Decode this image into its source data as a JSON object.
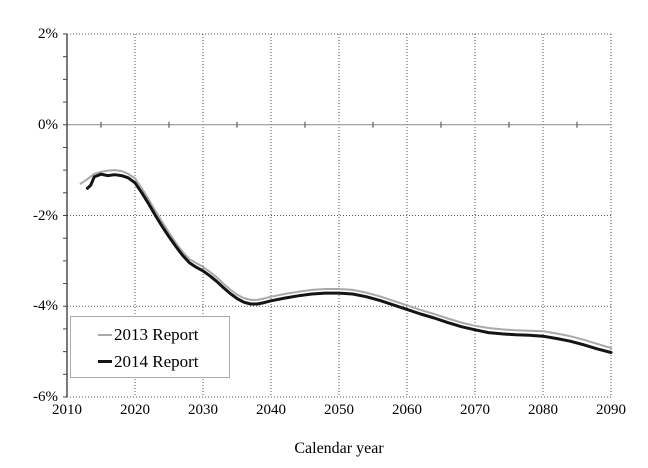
{
  "chart_data": {
    "type": "line",
    "title": "",
    "xlabel": "Calendar year",
    "ylabel": "",
    "xlim": [
      2010,
      2090
    ],
    "ylim": [
      -6,
      2
    ],
    "x_tick_values": [
      2010,
      2020,
      2030,
      2040,
      2050,
      2060,
      2070,
      2080,
      2090
    ],
    "x_tick_labels": [
      "2010",
      "2020",
      "2030",
      "2040",
      "2050",
      "2060",
      "2070",
      "2080",
      "2090"
    ],
    "x_minor_step": 5,
    "y_tick_values": [
      2,
      0,
      -2,
      -4,
      -6
    ],
    "y_tick_labels": [
      "2%",
      "0%",
      "-2%",
      "-4%",
      "-6%"
    ],
    "y_minor_step": 0.5,
    "grid": "dotted",
    "legend_position": "lower-left",
    "series": [
      {
        "name": "2013 Report",
        "color": "#a9a9a9",
        "width": 2,
        "points": [
          [
            2012,
            -1.3
          ],
          [
            2013,
            -1.2
          ],
          [
            2014,
            -1.08
          ],
          [
            2015,
            -1.04
          ],
          [
            2016,
            -1.01
          ],
          [
            2017,
            -1.0
          ],
          [
            2018,
            -1.02
          ],
          [
            2019,
            -1.08
          ],
          [
            2020,
            -1.18
          ],
          [
            2021,
            -1.4
          ],
          [
            2022,
            -1.64
          ],
          [
            2023,
            -1.9
          ],
          [
            2024,
            -2.14
          ],
          [
            2025,
            -2.38
          ],
          [
            2026,
            -2.6
          ],
          [
            2027,
            -2.8
          ],
          [
            2028,
            -2.96
          ],
          [
            2029,
            -3.05
          ],
          [
            2030,
            -3.13
          ],
          [
            2031,
            -3.24
          ],
          [
            2032,
            -3.36
          ],
          [
            2033,
            -3.5
          ],
          [
            2034,
            -3.63
          ],
          [
            2035,
            -3.74
          ],
          [
            2036,
            -3.82
          ],
          [
            2037,
            -3.86
          ],
          [
            2038,
            -3.86
          ],
          [
            2039,
            -3.83
          ],
          [
            2040,
            -3.79
          ],
          [
            2042,
            -3.73
          ],
          [
            2044,
            -3.68
          ],
          [
            2046,
            -3.64
          ],
          [
            2048,
            -3.62
          ],
          [
            2050,
            -3.62
          ],
          [
            2052,
            -3.64
          ],
          [
            2054,
            -3.7
          ],
          [
            2056,
            -3.78
          ],
          [
            2058,
            -3.88
          ],
          [
            2060,
            -3.98
          ],
          [
            2062,
            -4.08
          ],
          [
            2064,
            -4.17
          ],
          [
            2066,
            -4.27
          ],
          [
            2068,
            -4.36
          ],
          [
            2070,
            -4.43
          ],
          [
            2072,
            -4.48
          ],
          [
            2074,
            -4.51
          ],
          [
            2076,
            -4.53
          ],
          [
            2078,
            -4.54
          ],
          [
            2080,
            -4.55
          ],
          [
            2082,
            -4.6
          ],
          [
            2084,
            -4.66
          ],
          [
            2086,
            -4.74
          ],
          [
            2088,
            -4.83
          ],
          [
            2090,
            -4.92
          ]
        ]
      },
      {
        "name": "2014 Report",
        "color": "#141414",
        "width": 3,
        "points": [
          [
            2013,
            -1.4
          ],
          [
            2013.5,
            -1.33
          ],
          [
            2014,
            -1.15
          ],
          [
            2015,
            -1.09
          ],
          [
            2016,
            -1.12
          ],
          [
            2017,
            -1.1
          ],
          [
            2018,
            -1.12
          ],
          [
            2019,
            -1.17
          ],
          [
            2020,
            -1.28
          ],
          [
            2021,
            -1.5
          ],
          [
            2022,
            -1.74
          ],
          [
            2023,
            -2.0
          ],
          [
            2024,
            -2.24
          ],
          [
            2025,
            -2.47
          ],
          [
            2026,
            -2.68
          ],
          [
            2027,
            -2.88
          ],
          [
            2028,
            -3.04
          ],
          [
            2029,
            -3.14
          ],
          [
            2030,
            -3.22
          ],
          [
            2031,
            -3.33
          ],
          [
            2032,
            -3.45
          ],
          [
            2033,
            -3.59
          ],
          [
            2034,
            -3.72
          ],
          [
            2035,
            -3.83
          ],
          [
            2036,
            -3.91
          ],
          [
            2037,
            -3.95
          ],
          [
            2038,
            -3.95
          ],
          [
            2039,
            -3.92
          ],
          [
            2040,
            -3.88
          ],
          [
            2042,
            -3.82
          ],
          [
            2044,
            -3.77
          ],
          [
            2046,
            -3.73
          ],
          [
            2048,
            -3.71
          ],
          [
            2050,
            -3.71
          ],
          [
            2052,
            -3.73
          ],
          [
            2054,
            -3.79
          ],
          [
            2056,
            -3.87
          ],
          [
            2058,
            -3.97
          ],
          [
            2060,
            -4.07
          ],
          [
            2062,
            -4.17
          ],
          [
            2064,
            -4.26
          ],
          [
            2066,
            -4.36
          ],
          [
            2068,
            -4.45
          ],
          [
            2070,
            -4.52
          ],
          [
            2072,
            -4.58
          ],
          [
            2074,
            -4.61
          ],
          [
            2076,
            -4.63
          ],
          [
            2078,
            -4.64
          ],
          [
            2080,
            -4.66
          ],
          [
            2082,
            -4.71
          ],
          [
            2084,
            -4.77
          ],
          [
            2086,
            -4.85
          ],
          [
            2088,
            -4.94
          ],
          [
            2090,
            -5.02
          ]
        ]
      }
    ]
  },
  "colors": {
    "background": "#ffffff",
    "grid": "#555555",
    "zero_line": "#888888",
    "axis": "#222222",
    "tick": "#444444",
    "legend_border": "#aaaaaa",
    "text": "#000000"
  }
}
